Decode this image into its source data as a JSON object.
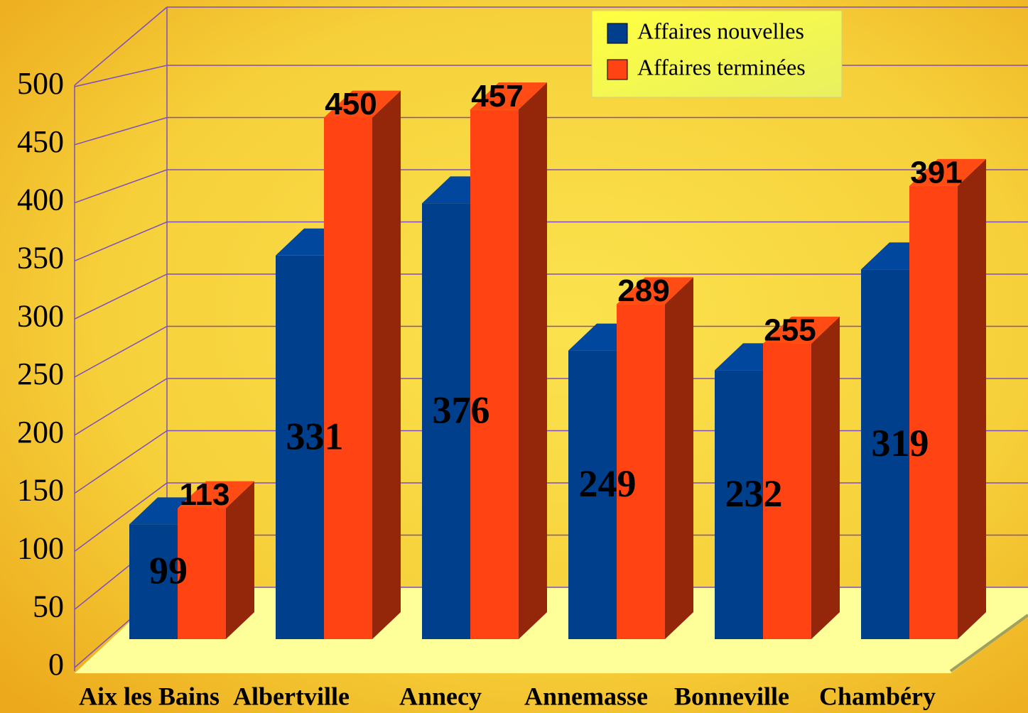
{
  "chart_data": {
    "type": "bar3d",
    "categories": [
      "Aix les Bains",
      "Albertville",
      "Annecy",
      "Annemasse",
      "Bonneville",
      "Chambéry"
    ],
    "series": [
      {
        "name": "Affaires nouvelles",
        "color": "#003f8c",
        "values": [
          99,
          331,
          376,
          249,
          232,
          319
        ]
      },
      {
        "name": "Affaires terminées",
        "color": "#ff4312",
        "values": [
          113,
          450,
          457,
          289,
          255,
          391
        ]
      }
    ],
    "ylim": [
      0,
      500
    ],
    "yticks": [
      0,
      50,
      100,
      150,
      200,
      250,
      300,
      350,
      400,
      450,
      500
    ],
    "grid": true,
    "legend": "upper right"
  }
}
